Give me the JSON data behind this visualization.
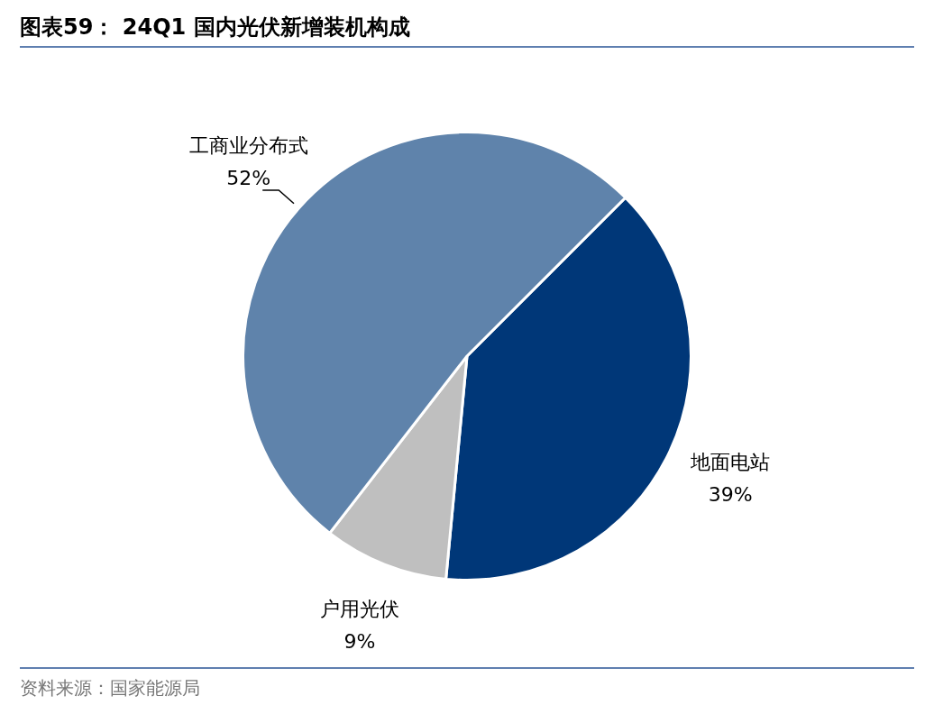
{
  "chart_data": {
    "type": "pie",
    "title": "图表59： 24Q1 国内光伏新增装机构成",
    "categories": [
      "地面电站",
      "户用光伏",
      "工商业分布式"
    ],
    "values": [
      39,
      9,
      52
    ],
    "value_labels": [
      "39%",
      "9%",
      "52%"
    ],
    "colors": [
      "#003778",
      "#bfbfbf",
      "#5f83ab"
    ],
    "legend": false,
    "annotations": [
      "资料来源：国家能源局"
    ]
  }
}
